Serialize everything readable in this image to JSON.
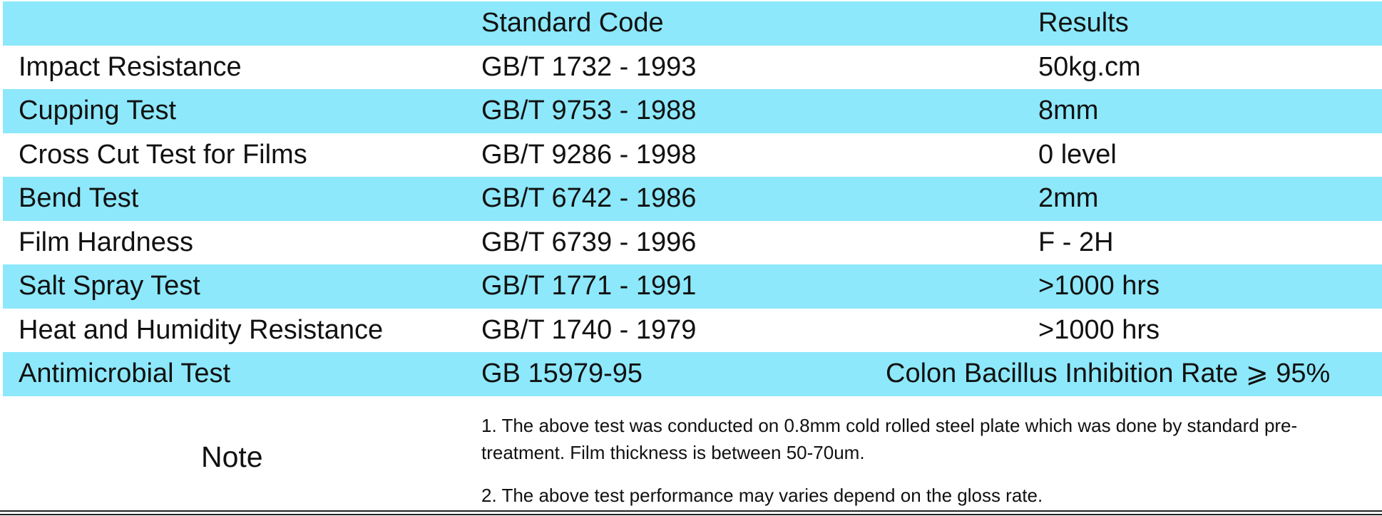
{
  "header": {
    "name": "",
    "code": "Standard Code",
    "result": "Results"
  },
  "rows": [
    {
      "name": "Impact Resistance",
      "code": "GB/T 1732 - 1993",
      "result": "50kg.cm"
    },
    {
      "name": "Cupping Test",
      "code": "GB/T 9753 - 1988",
      "result": "8mm"
    },
    {
      "name": "Cross Cut Test for Films",
      "code": "GB/T 9286 - 1998",
      "result": "0 level"
    },
    {
      "name": "Bend Test",
      "code": "GB/T 6742 - 1986",
      "result": "2mm"
    },
    {
      "name": "Film Hardness",
      "code": "GB/T 6739 - 1996",
      "result": "F - 2H"
    },
    {
      "name": "Salt Spray Test",
      "code": "GB/T 1771 - 1991",
      "result": ">1000 hrs"
    },
    {
      "name": "Heat and Humidity Resistance",
      "code": "GB/T 1740 - 1979",
      "result": ">1000 hrs"
    },
    {
      "name": "Antimicrobial Test",
      "code": "GB 15979-95",
      "result": "Colon Bacillus Inhibition Rate ⩾ 95%"
    }
  ],
  "note": {
    "label": "Note",
    "lines": [
      "1. The above test was conducted on 0.8mm cold rolled steel plate which was done by standard pre-treatment. Film thickness is between 50-70um.",
      "2. The above test performance may varies depend on the gloss rate."
    ]
  },
  "colors": {
    "band": "#8de8fb",
    "text": "#111111"
  }
}
